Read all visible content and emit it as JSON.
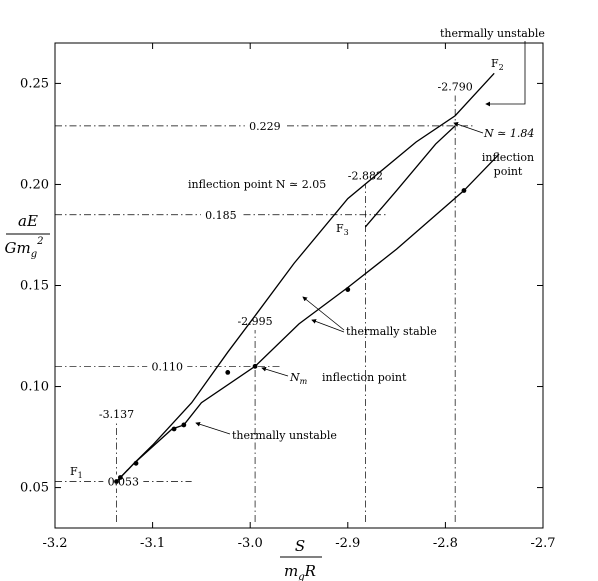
{
  "chart_data": {
    "type": "line",
    "xlabel": {
      "numerator": "S",
      "denominator": "m",
      "denominator_sub": "g",
      "denominator_tail": "R"
    },
    "ylabel": {
      "numerator": "aE",
      "denominator": "Gm",
      "denominator_sub": "g",
      "denominator_sup": "2"
    },
    "xlim": [
      -3.2,
      -2.7
    ],
    "ylim": [
      0.03,
      0.27
    ],
    "x_ticks": [
      -3.2,
      -3.1,
      -3.0,
      -2.9,
      -2.8,
      -2.7
    ],
    "x_tick_labels": [
      "-3.2",
      "-3.1",
      "-3.0",
      "-2.9",
      "-2.8",
      "-2.7"
    ],
    "y_ticks": [
      0.05,
      0.1,
      0.15,
      0.2,
      0.25
    ],
    "y_tick_labels": [
      "0.05",
      "0.10",
      "0.15",
      "0.20",
      "0.25"
    ],
    "grid": false,
    "series": [
      {
        "id": "upper-branch",
        "x": [
          -3.137,
          -3.119,
          -3.1,
          -3.06,
          -3.023,
          -2.995,
          -2.955,
          -2.9,
          -2.83,
          -2.79,
          -2.75
        ],
        "y": [
          0.053,
          0.062,
          0.071,
          0.092,
          0.117,
          0.135,
          0.161,
          0.193,
          0.221,
          0.234,
          0.255
        ]
      },
      {
        "id": "lower-branch",
        "x": [
          -3.137,
          -3.119,
          -3.08,
          -3.068,
          -3.05,
          -2.995,
          -2.95,
          -2.9,
          -2.85,
          -2.781,
          -2.745
        ],
        "y": [
          0.053,
          0.062,
          0.079,
          0.081,
          0.092,
          0.11,
          0.131,
          0.149,
          0.168,
          0.197,
          0.215
        ]
      },
      {
        "id": "f3-branch",
        "x": [
          -2.882,
          -2.85,
          -2.81,
          -2.79
        ],
        "y": [
          0.179,
          0.197,
          0.22,
          0.229
        ]
      }
    ],
    "markers": [
      {
        "x": -3.137,
        "y": 0.053
      },
      {
        "x": -3.133,
        "y": 0.055
      },
      {
        "x": -3.117,
        "y": 0.062
      },
      {
        "x": -3.078,
        "y": 0.079
      },
      {
        "x": -3.068,
        "y": 0.081
      },
      {
        "x": -3.023,
        "y": 0.107
      },
      {
        "x": -2.995,
        "y": 0.11
      },
      {
        "x": -2.9,
        "y": 0.148
      },
      {
        "x": -2.781,
        "y": 0.197
      }
    ],
    "reference_lines": [
      {
        "axis": "x",
        "value": -3.137,
        "label": "-3.137",
        "from": 0.033,
        "to": 0.082
      },
      {
        "axis": "x",
        "value": -2.995,
        "label": "-2.995",
        "from": 0.033,
        "to": 0.128
      },
      {
        "axis": "x",
        "value": -2.882,
        "label": "-2.882",
        "from": 0.033,
        "to": 0.2
      },
      {
        "axis": "x",
        "value": -2.79,
        "label": "-2.790",
        "from": 0.033,
        "to": 0.244
      },
      {
        "axis": "y",
        "value": 0.053,
        "label": "0.053",
        "from": -3.2,
        "to": -3.06
      },
      {
        "axis": "y",
        "value": 0.11,
        "label": "0.110",
        "from": -3.2,
        "to": -2.97
      },
      {
        "axis": "y",
        "value": 0.185,
        "label": "0.185",
        "from": -3.2,
        "to": -2.86
      },
      {
        "axis": "y",
        "value": 0.229,
        "label": "0.229",
        "from": -3.2,
        "to": -2.77
      }
    ],
    "point_labels": [
      {
        "text": "F",
        "sub": "1"
      },
      {
        "text": "F",
        "sub": "2"
      },
      {
        "text": "F",
        "sub": "3"
      }
    ],
    "annotations": {
      "thermally_unstable_top": "thermally unstable",
      "n_184": "N ≃ 1.84",
      "inflection_point_right": [
        "inflection",
        "point"
      ],
      "inflection_205": "inflection point  N ≃ 2.05",
      "thermally_stable": "thermally stable",
      "nm": "N",
      "nm_sub": "m",
      "inflection_point_mid": "inflection point",
      "thermally_unstable_bottom": "thermally unstable"
    }
  }
}
